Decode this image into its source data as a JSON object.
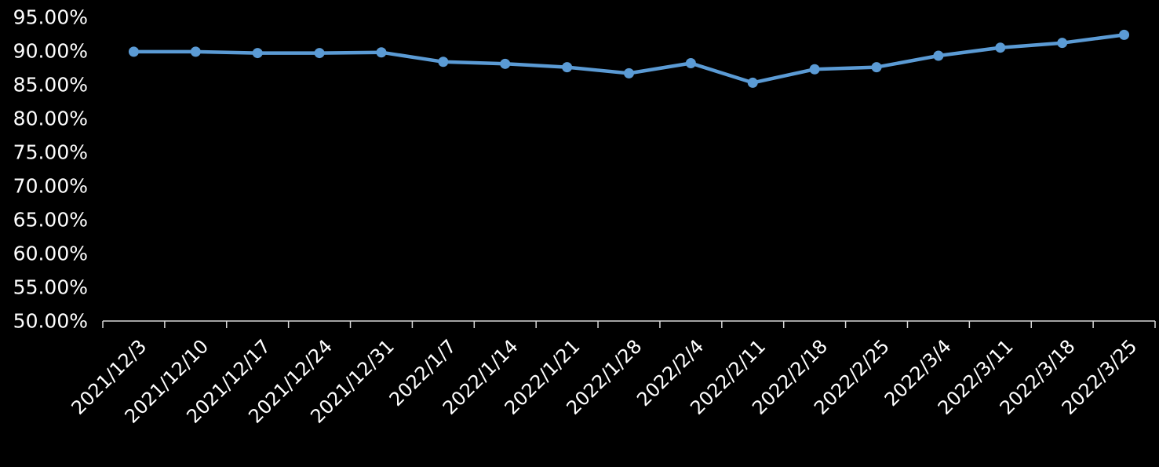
{
  "chart_data": {
    "type": "line",
    "title": "",
    "xlabel": "",
    "ylabel": "",
    "categories": [
      "2021/12/3",
      "2021/12/10",
      "2021/12/17",
      "2021/12/24",
      "2021/12/31",
      "2022/1/7",
      "2022/1/14",
      "2022/1/21",
      "2022/1/28",
      "2022/2/4",
      "2022/2/11",
      "2022/2/18",
      "2022/2/25",
      "2022/3/4",
      "2022/3/11",
      "2022/3/18",
      "2022/3/25"
    ],
    "series": [
      {
        "values": [
          0.899,
          0.899,
          0.897,
          0.897,
          0.898,
          0.884,
          0.881,
          0.876,
          0.867,
          0.882,
          0.853,
          0.873,
          0.876,
          0.893,
          0.905,
          0.912,
          0.924
        ]
      }
    ],
    "ylim": [
      0.5,
      0.95
    ],
    "y_ticks": [
      "50.00%",
      "55.00%",
      "60.00%",
      "65.00%",
      "70.00%",
      "75.00%",
      "80.00%",
      "85.00%",
      "90.00%",
      "95.00%"
    ],
    "grid": false,
    "legend": "none"
  },
  "colors": {
    "background": "#000000",
    "line": "#5b9bd5",
    "axis": "#d9d9d9",
    "text": "#ffffff"
  }
}
